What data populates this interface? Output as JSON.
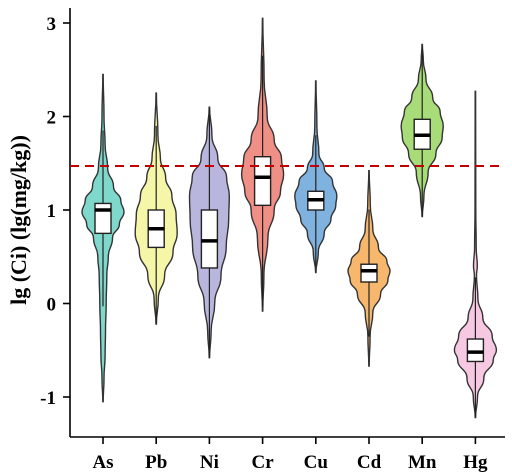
{
  "chart_data": {
    "type": "violin",
    "ylabel": "lg (Ci) (lg(mg/kg))",
    "xlabel": "",
    "ylim": [
      -1.4,
      3.2
    ],
    "yticks": [
      -1,
      0,
      1,
      2,
      3
    ],
    "grid": false,
    "reference_line": {
      "y": 1.47,
      "color": "#c00000",
      "style": "dashed"
    },
    "categories": [
      "As",
      "Pb",
      "Ni",
      "Cr",
      "Cu",
      "Cd",
      "Mn",
      "Hg"
    ],
    "series": [
      {
        "category": "As",
        "color": "#7fd8cc",
        "min": -1.05,
        "max": 2.45,
        "q1": 0.75,
        "median": 1.0,
        "q3": 1.07,
        "profile": [
          [
            -1.05,
            0.01
          ],
          [
            -0.8,
            0.05
          ],
          [
            -0.55,
            0.1
          ],
          [
            -0.3,
            0.12
          ],
          [
            0.0,
            0.15
          ],
          [
            0.3,
            0.18
          ],
          [
            0.5,
            0.25
          ],
          [
            0.7,
            0.45
          ],
          [
            0.85,
            0.78
          ],
          [
            0.98,
            1.0
          ],
          [
            1.1,
            0.85
          ],
          [
            1.25,
            0.5
          ],
          [
            1.45,
            0.22
          ],
          [
            1.7,
            0.1
          ],
          [
            2.0,
            0.05
          ],
          [
            2.45,
            0.01
          ]
        ]
      },
      {
        "category": "Pb",
        "color": "#f6f6a8",
        "min": -0.22,
        "max": 2.25,
        "q1": 0.6,
        "median": 0.8,
        "q3": 1.0,
        "profile": [
          [
            -0.22,
            0.01
          ],
          [
            0.05,
            0.1
          ],
          [
            0.3,
            0.4
          ],
          [
            0.55,
            0.8
          ],
          [
            0.75,
            1.0
          ],
          [
            0.95,
            0.95
          ],
          [
            1.15,
            0.75
          ],
          [
            1.35,
            0.45
          ],
          [
            1.55,
            0.2
          ],
          [
            1.8,
            0.08
          ],
          [
            2.25,
            0.01
          ]
        ]
      },
      {
        "category": "Ni",
        "color": "#b9b6de",
        "min": -0.58,
        "max": 2.1,
        "q1": 0.38,
        "median": 0.67,
        "q3": 1.0,
        "profile": [
          [
            -0.58,
            0.01
          ],
          [
            -0.3,
            0.08
          ],
          [
            0.0,
            0.25
          ],
          [
            0.3,
            0.55
          ],
          [
            0.6,
            0.8
          ],
          [
            0.9,
            0.92
          ],
          [
            1.15,
            0.95
          ],
          [
            1.35,
            0.82
          ],
          [
            1.55,
            0.4
          ],
          [
            1.8,
            0.12
          ],
          [
            2.1,
            0.01
          ]
        ]
      },
      {
        "category": "Cr",
        "color": "#f08f86",
        "min": -0.08,
        "max": 3.05,
        "q1": 1.05,
        "median": 1.35,
        "q3": 1.57,
        "profile": [
          [
            -0.08,
            0.01
          ],
          [
            0.3,
            0.06
          ],
          [
            0.7,
            0.25
          ],
          [
            1.0,
            0.55
          ],
          [
            1.2,
            0.85
          ],
          [
            1.38,
            1.0
          ],
          [
            1.55,
            0.9
          ],
          [
            1.75,
            0.55
          ],
          [
            2.0,
            0.22
          ],
          [
            2.4,
            0.07
          ],
          [
            3.05,
            0.01
          ]
        ]
      },
      {
        "category": "Cu",
        "color": "#7fb2de",
        "min": 0.33,
        "max": 2.38,
        "q1": 1.0,
        "median": 1.11,
        "q3": 1.2,
        "profile": [
          [
            0.33,
            0.01
          ],
          [
            0.55,
            0.12
          ],
          [
            0.75,
            0.4
          ],
          [
            0.9,
            0.72
          ],
          [
            1.05,
            0.95
          ],
          [
            1.15,
            1.0
          ],
          [
            1.3,
            0.8
          ],
          [
            1.45,
            0.4
          ],
          [
            1.6,
            0.15
          ],
          [
            1.9,
            0.05
          ],
          [
            2.38,
            0.01
          ]
        ]
      },
      {
        "category": "Cd",
        "color": "#f7b86e",
        "min": -0.67,
        "max": 1.42,
        "q1": 0.23,
        "median": 0.35,
        "q3": 0.42,
        "profile": [
          [
            -0.67,
            0.01
          ],
          [
            -0.35,
            0.05
          ],
          [
            -0.1,
            0.18
          ],
          [
            0.1,
            0.55
          ],
          [
            0.25,
            0.9
          ],
          [
            0.35,
            1.0
          ],
          [
            0.45,
            0.85
          ],
          [
            0.6,
            0.45
          ],
          [
            0.8,
            0.18
          ],
          [
            1.05,
            0.06
          ],
          [
            1.42,
            0.01
          ]
        ]
      },
      {
        "category": "Mn",
        "color": "#a8dc78",
        "min": 0.93,
        "max": 2.77,
        "q1": 1.65,
        "median": 1.8,
        "q3": 1.97,
        "profile": [
          [
            0.93,
            0.01
          ],
          [
            1.15,
            0.08
          ],
          [
            1.4,
            0.28
          ],
          [
            1.6,
            0.65
          ],
          [
            1.78,
            0.95
          ],
          [
            1.9,
            1.0
          ],
          [
            2.05,
            0.85
          ],
          [
            2.2,
            0.5
          ],
          [
            2.4,
            0.18
          ],
          [
            2.6,
            0.05
          ],
          [
            2.77,
            0.01
          ]
        ]
      },
      {
        "category": "Hg",
        "color": "#f6c8e2",
        "min": -1.22,
        "max": 2.27,
        "q1": -0.62,
        "median": -0.52,
        "q3": -0.38,
        "profile": [
          [
            -1.22,
            0.01
          ],
          [
            -1.0,
            0.1
          ],
          [
            -0.8,
            0.4
          ],
          [
            -0.6,
            0.85
          ],
          [
            -0.5,
            1.0
          ],
          [
            -0.35,
            0.8
          ],
          [
            -0.15,
            0.35
          ],
          [
            0.05,
            0.12
          ],
          [
            0.3,
            0.05
          ],
          [
            0.4,
            0.09
          ],
          [
            0.6,
            0.04
          ],
          [
            1.0,
            0.02
          ],
          [
            1.6,
            0.015
          ],
          [
            2.27,
            0.01
          ]
        ]
      }
    ]
  }
}
